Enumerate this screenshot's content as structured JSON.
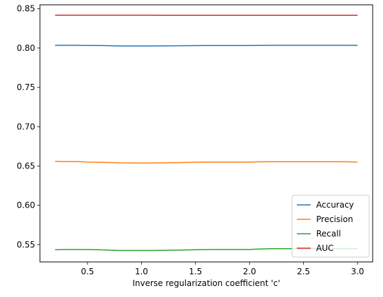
{
  "chart_data": {
    "type": "line",
    "title": "",
    "xlabel": "Inverse regularization coefficient 'c'",
    "ylabel": "",
    "xlim": [
      0.06,
      3.14
    ],
    "ylim": [
      0.528,
      0.855
    ],
    "xticks": [
      0.5,
      1.0,
      1.5,
      2.0,
      2.5,
      3.0
    ],
    "xtick_labels": [
      "0.5",
      "1.0",
      "1.5",
      "2.0",
      "2.5",
      "3.0"
    ],
    "yticks": [
      0.55,
      0.6,
      0.65,
      0.7,
      0.75,
      0.8,
      0.85
    ],
    "ytick_labels": [
      "0.55",
      "0.60",
      "0.65",
      "0.70",
      "0.75",
      "0.80",
      "0.85"
    ],
    "grid": false,
    "legend_position": "lower-right",
    "x": [
      0.2,
      0.3,
      0.4,
      0.5,
      0.6,
      0.7,
      0.8,
      0.9,
      1.0,
      1.1,
      1.2,
      1.3,
      1.4,
      1.5,
      1.6,
      1.7,
      1.8,
      1.9,
      2.0,
      2.1,
      2.2,
      2.3,
      2.4,
      2.5,
      2.6,
      2.7,
      2.8,
      2.9,
      3.0
    ],
    "series": [
      {
        "name": "Accuracy",
        "color": "#1f77b4",
        "values": [
          0.8035,
          0.8035,
          0.8035,
          0.8033,
          0.8032,
          0.803,
          0.8027,
          0.8027,
          0.8027,
          0.8027,
          0.8028,
          0.8029,
          0.803,
          0.8031,
          0.8032,
          0.8032,
          0.8032,
          0.8032,
          0.8032,
          0.8034,
          0.8035,
          0.8035,
          0.8035,
          0.8035,
          0.8035,
          0.8035,
          0.8035,
          0.8035,
          0.8034
        ]
      },
      {
        "name": "Precision",
        "color": "#ff7f0e",
        "values": [
          0.656,
          0.6558,
          0.6557,
          0.655,
          0.6548,
          0.6545,
          0.654,
          0.6539,
          0.6538,
          0.6539,
          0.654,
          0.6542,
          0.6545,
          0.6548,
          0.655,
          0.655,
          0.655,
          0.655,
          0.655,
          0.6553,
          0.6554,
          0.6554,
          0.6554,
          0.6554,
          0.6554,
          0.6554,
          0.6554,
          0.6553,
          0.655
        ]
      },
      {
        "name": "Recall",
        "color": "#2ca02c",
        "values": [
          0.5435,
          0.5438,
          0.5438,
          0.5437,
          0.5435,
          0.543,
          0.5425,
          0.5425,
          0.5425,
          0.5425,
          0.5428,
          0.543,
          0.5432,
          0.5435,
          0.5437,
          0.5438,
          0.5438,
          0.5438,
          0.5438,
          0.5445,
          0.5448,
          0.5448,
          0.5448,
          0.5448,
          0.5448,
          0.5448,
          0.5448,
          0.5448,
          0.5448
        ]
      },
      {
        "name": "AUC",
        "color": "#d62728",
        "values": [
          0.8418,
          0.8418,
          0.8418,
          0.8418,
          0.8418,
          0.8418,
          0.8418,
          0.8418,
          0.8418,
          0.8418,
          0.8417,
          0.8417,
          0.8417,
          0.8417,
          0.8417,
          0.8417,
          0.8417,
          0.8417,
          0.8417,
          0.8417,
          0.8417,
          0.8417,
          0.8417,
          0.8417,
          0.8417,
          0.8417,
          0.8417,
          0.8417,
          0.8417
        ]
      }
    ]
  }
}
